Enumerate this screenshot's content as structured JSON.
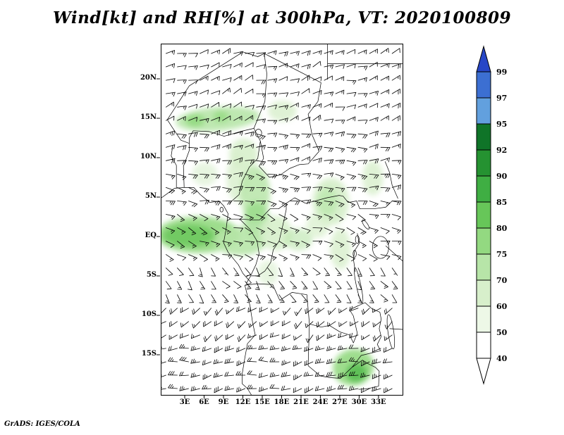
{
  "page": {
    "title": "Wind[kt] and RH[%] at 300hPa, VT: 2020100809",
    "credit": "GrADS: IGES/COLA"
  },
  "chart_data": {
    "type": "heatmap",
    "variant": "wind-barb-map-with-shaded-relative-humidity",
    "title": "Wind[kt] and RH[%] at 300hPa, VT: 2020100809",
    "valid_time": "2020100809",
    "level_hPa": 300,
    "units": {
      "wind": "kt",
      "rh": "%"
    },
    "grid": false,
    "legend_position": "right-colorbar",
    "lon_range": [
      -0.71,
      36.61
    ],
    "lat_range": [
      -20.0,
      24.46
    ],
    "x_ticks": [
      {
        "label": "3E",
        "deg": 3
      },
      {
        "label": "6E",
        "deg": 6
      },
      {
        "label": "9E",
        "deg": 9
      },
      {
        "label": "12E",
        "deg": 12
      },
      {
        "label": "15E",
        "deg": 15
      },
      {
        "label": "18E",
        "deg": 18
      },
      {
        "label": "21E",
        "deg": 21
      },
      {
        "label": "24E",
        "deg": 24
      },
      {
        "label": "27E",
        "deg": 27
      },
      {
        "label": "30E",
        "deg": 30
      },
      {
        "label": "33E",
        "deg": 33
      }
    ],
    "y_ticks": [
      {
        "label": "20N",
        "deg": 20
      },
      {
        "label": "15N",
        "deg": 15
      },
      {
        "label": "10N",
        "deg": 10
      },
      {
        "label": "5N",
        "deg": 5
      },
      {
        "label": "EQ",
        "deg": 0
      },
      {
        "label": "5S",
        "deg": -5
      },
      {
        "label": "10S",
        "deg": -10
      },
      {
        "label": "15S",
        "deg": -15
      }
    ],
    "colorbar": {
      "levels": [
        40,
        50,
        60,
        70,
        75,
        80,
        85,
        90,
        92,
        95,
        97,
        99
      ],
      "segment_colors_bottom_to_top": [
        "#ffffff",
        "#edf8e7",
        "#d7efcb",
        "#b7e5a8",
        "#93d981",
        "#67c659",
        "#3fae43",
        "#259231",
        "#0f7428",
        "#62a0de",
        "#3c6fd2"
      ],
      "below_color": "#ffffff",
      "above_color": "#2746c6"
    },
    "wind_field_model": {
      "note": "Approximate 300 hPa wind-barb field read from the plot; barbs in kt",
      "grid_step_deg_lon": 1.75,
      "grid_step_deg_lat": 1.7,
      "bands": [
        {
          "lat_min": 14,
          "lat_max": 25,
          "dir_from": 70,
          "speed_kt": 13
        },
        {
          "lat_min": 8,
          "lat_max": 14,
          "dir_from": 85,
          "speed_kt": 18
        },
        {
          "lat_min": 3,
          "lat_max": 8,
          "dir_from": 95,
          "speed_kt": 20
        },
        {
          "lat_min": -3,
          "lat_max": 3,
          "dir_from": 110,
          "speed_kt": 13
        },
        {
          "lat_min": -8,
          "lat_max": -3,
          "dir_from": 145,
          "speed_kt": 12
        },
        {
          "lat_min": -13,
          "lat_max": -8,
          "dir_from": 235,
          "speed_kt": 18
        },
        {
          "lat_min": -20,
          "lat_max": -13,
          "dir_from": 258,
          "speed_kt": 25
        }
      ]
    },
    "rh_shading_regions": [
      {
        "lon": 8.0,
        "lat": 15.0,
        "rx": 6.5,
        "ry": 1.5,
        "rot": -5,
        "fill": "#b7e5a8",
        "opacity": 0.9
      },
      {
        "lon": 4.5,
        "lat": 14.8,
        "rx": 1.5,
        "ry": 0.8,
        "rot": 0,
        "fill": "#93d981",
        "opacity": 0.9
      },
      {
        "lon": 8.5,
        "lat": 15.3,
        "rx": 1.2,
        "ry": 0.7,
        "rot": 0,
        "fill": "#93d981",
        "opacity": 0.8
      },
      {
        "lon": 12.0,
        "lat": 10.5,
        "rx": 2.2,
        "ry": 2.0,
        "rot": 0,
        "fill": "#d7efcb",
        "opacity": 0.9
      },
      {
        "lon": 11.0,
        "lat": 7.5,
        "rx": 1.6,
        "ry": 3.0,
        "rot": 0,
        "fill": "#d7efcb",
        "opacity": 0.8
      },
      {
        "lon": 13.8,
        "lat": 5.5,
        "rx": 2.3,
        "ry": 3.5,
        "rot": 0,
        "fill": "#b7e5a8",
        "opacity": 0.85
      },
      {
        "lon": 14.0,
        "lat": 2.0,
        "rx": 2.0,
        "ry": 2.5,
        "rot": 0,
        "fill": "#93d981",
        "opacity": 0.7
      },
      {
        "lon": 5.0,
        "lat": 0.3,
        "rx": 6.5,
        "ry": 2.3,
        "rot": 0,
        "fill": "#93d981",
        "opacity": 0.9
      },
      {
        "lon": 3.5,
        "lat": 0.2,
        "rx": 4.0,
        "ry": 1.4,
        "rot": 0,
        "fill": "#67c659",
        "opacity": 0.8
      },
      {
        "lon": 11.5,
        "lat": -0.5,
        "rx": 4.0,
        "ry": 1.8,
        "rot": 0,
        "fill": "#b7e5a8",
        "opacity": 0.9
      },
      {
        "lon": 17.0,
        "lat": 0.5,
        "rx": 2.5,
        "ry": 2.2,
        "rot": 0,
        "fill": "#d7efcb",
        "opacity": 0.9
      },
      {
        "lon": 20.5,
        "lat": -0.3,
        "rx": 2.2,
        "ry": 1.4,
        "rot": 0,
        "fill": "#b7e5a8",
        "opacity": 0.6
      },
      {
        "lon": 23.5,
        "lat": 1.5,
        "rx": 1.8,
        "ry": 1.6,
        "rot": 0,
        "fill": "#d7efcb",
        "opacity": 0.7
      },
      {
        "lon": 25.5,
        "lat": 4.5,
        "rx": 2.8,
        "ry": 3.0,
        "rot": 0,
        "fill": "#d7efcb",
        "opacity": 0.95
      },
      {
        "lon": 25.0,
        "lat": 4.5,
        "rx": 1.6,
        "ry": 1.8,
        "rot": 0,
        "fill": "#b7e5a8",
        "opacity": 0.7
      },
      {
        "lon": 18.0,
        "lat": 16.0,
        "rx": 2.2,
        "ry": 1.3,
        "rot": 0,
        "fill": "#d7efcb",
        "opacity": 0.8
      },
      {
        "lon": 27.0,
        "lat": -1.5,
        "rx": 1.6,
        "ry": 2.6,
        "rot": 0,
        "fill": "#d7efcb",
        "opacity": 0.8
      },
      {
        "lon": 32.0,
        "lat": 7.5,
        "rx": 1.6,
        "ry": 2.2,
        "rot": 0,
        "fill": "#d7efcb",
        "opacity": 0.8
      },
      {
        "lon": 15.8,
        "lat": -4.5,
        "rx": 1.6,
        "ry": 1.6,
        "rot": 0,
        "fill": "#d7efcb",
        "opacity": 0.6
      },
      {
        "lon": 29.0,
        "lat": -16.5,
        "rx": 3.2,
        "ry": 2.3,
        "rot": -15,
        "fill": "#93d981",
        "opacity": 0.9
      },
      {
        "lon": 29.5,
        "lat": -17.2,
        "rx": 1.6,
        "ry": 1.2,
        "rot": -15,
        "fill": "#4fb94a",
        "opacity": 0.8
      },
      {
        "lon": 6.0,
        "lat": 8.0,
        "rx": 2.0,
        "ry": 1.5,
        "rot": 0,
        "fill": "#d7efcb",
        "opacity": 0.6
      }
    ]
  }
}
